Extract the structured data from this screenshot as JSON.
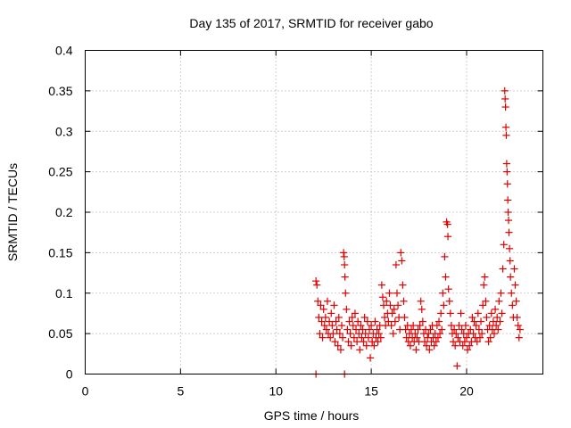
{
  "chart_data": {
    "type": "scatter",
    "title": "Day 135 of 2017, SRMTID for receiver gabo",
    "xlabel": "GPS time / hours",
    "ylabel": "SRMTID / TECUs",
    "xlim": [
      0,
      24
    ],
    "ylim": [
      0,
      0.4
    ],
    "x_ticks": [
      0,
      5,
      10,
      15,
      20
    ],
    "x_tick_labels": [
      "0",
      "5",
      "10",
      "15",
      "20"
    ],
    "y_ticks": [
      0,
      0.05,
      0.1,
      0.15,
      0.2,
      0.25,
      0.3,
      0.35,
      0.4
    ],
    "y_tick_labels": [
      "0",
      "0.05",
      "0.1",
      "0.15",
      "0.2",
      "0.25",
      "0.3",
      "0.35",
      "0.4"
    ],
    "grid": true,
    "marker": "+",
    "color": "#e00000",
    "series": [
      {
        "name": "SRMTID",
        "points": [
          [
            12.1,
            0.115
          ],
          [
            12.15,
            0.11
          ],
          [
            12.2,
            0.09
          ],
          [
            12.25,
            0.07
          ],
          [
            12.3,
            0.05
          ],
          [
            12.35,
            0.085
          ],
          [
            12.4,
            0.065
          ],
          [
            12.45,
            0.045
          ],
          [
            12.5,
            0.08
          ],
          [
            12.55,
            0.06
          ],
          [
            12.6,
            0.07
          ],
          [
            12.65,
            0.055
          ],
          [
            12.7,
            0.09
          ],
          [
            12.75,
            0.05
          ],
          [
            12.8,
            0.065
          ],
          [
            12.85,
            0.045
          ],
          [
            12.9,
            0.075
          ],
          [
            12.95,
            0.06
          ],
          [
            13.0,
            0.05
          ],
          [
            13.05,
            0.085
          ],
          [
            13.1,
            0.04
          ],
          [
            13.15,
            0.065
          ],
          [
            13.2,
            0.055
          ],
          [
            13.25,
            0.035
          ],
          [
            13.3,
            0.07
          ],
          [
            13.35,
            0.05
          ],
          [
            13.4,
            0.03
          ],
          [
            13.45,
            0.06
          ],
          [
            13.5,
            0.045
          ],
          [
            13.55,
            0.15
          ],
          [
            13.58,
            0.145
          ],
          [
            13.6,
            0.135
          ],
          [
            13.62,
            0.12
          ],
          [
            13.65,
            0.1
          ],
          [
            13.7,
            0.08
          ],
          [
            13.75,
            0.055
          ],
          [
            13.8,
            0.04
          ],
          [
            13.85,
            0.065
          ],
          [
            13.9,
            0.05
          ],
          [
            13.95,
            0.035
          ],
          [
            14.0,
            0.07
          ],
          [
            14.05,
            0.06
          ],
          [
            14.1,
            0.045
          ],
          [
            14.15,
            0.075
          ],
          [
            14.2,
            0.055
          ],
          [
            14.25,
            0.04
          ],
          [
            14.3,
            0.065
          ],
          [
            14.35,
            0.05
          ],
          [
            14.4,
            0.03
          ],
          [
            14.45,
            0.06
          ],
          [
            14.5,
            0.045
          ],
          [
            14.55,
            0.055
          ],
          [
            14.6,
            0.04
          ],
          [
            14.65,
            0.07
          ],
          [
            14.7,
            0.05
          ],
          [
            14.75,
            0.035
          ],
          [
            14.8,
            0.065
          ],
          [
            14.85,
            0.045
          ],
          [
            14.9,
            0.055
          ],
          [
            14.95,
            0.02
          ],
          [
            15.0,
            0.06
          ],
          [
            15.05,
            0.04
          ],
          [
            15.1,
            0.05
          ],
          [
            15.15,
            0.035
          ],
          [
            15.2,
            0.065
          ],
          [
            15.25,
            0.045
          ],
          [
            15.3,
            0.055
          ],
          [
            15.35,
            0.04
          ],
          [
            15.4,
            0.05
          ],
          [
            15.45,
            0.06
          ],
          [
            15.5,
            0.045
          ],
          [
            15.55,
            0.11
          ],
          [
            15.6,
            0.095
          ],
          [
            15.65,
            0.085
          ],
          [
            15.7,
            0.07
          ],
          [
            15.75,
            0.06
          ],
          [
            15.8,
            0.09
          ],
          [
            15.85,
            0.075
          ],
          [
            15.9,
            0.065
          ],
          [
            15.95,
            0.1
          ],
          [
            16.0,
            0.085
          ],
          [
            16.05,
            0.06
          ],
          [
            16.1,
            0.075
          ],
          [
            16.15,
            0.05
          ],
          [
            16.2,
            0.08
          ],
          [
            16.25,
            0.065
          ],
          [
            16.3,
            0.135
          ],
          [
            16.35,
            0.1
          ],
          [
            16.4,
            0.085
          ],
          [
            16.45,
            0.07
          ],
          [
            16.5,
            0.055
          ],
          [
            16.55,
            0.15
          ],
          [
            16.6,
            0.14
          ],
          [
            16.65,
            0.11
          ],
          [
            16.7,
            0.09
          ],
          [
            16.75,
            0.07
          ],
          [
            16.8,
            0.055
          ],
          [
            16.85,
            0.045
          ],
          [
            16.9,
            0.06
          ],
          [
            16.95,
            0.04
          ],
          [
            17.0,
            0.05
          ],
          [
            17.05,
            0.035
          ],
          [
            17.1,
            0.055
          ],
          [
            17.15,
            0.045
          ],
          [
            17.2,
            0.06
          ],
          [
            17.25,
            0.04
          ],
          [
            17.3,
            0.05
          ],
          [
            17.35,
            0.03
          ],
          [
            17.4,
            0.045
          ],
          [
            17.45,
            0.055
          ],
          [
            17.5,
            0.04
          ],
          [
            17.55,
            0.06
          ],
          [
            17.6,
            0.09
          ],
          [
            17.65,
            0.08
          ],
          [
            17.7,
            0.065
          ],
          [
            17.75,
            0.05
          ],
          [
            17.8,
            0.04
          ],
          [
            17.85,
            0.055
          ],
          [
            17.9,
            0.035
          ],
          [
            17.95,
            0.045
          ],
          [
            18.0,
            0.05
          ],
          [
            18.05,
            0.03
          ],
          [
            18.1,
            0.055
          ],
          [
            18.15,
            0.04
          ],
          [
            18.2,
            0.06
          ],
          [
            18.25,
            0.045
          ],
          [
            18.3,
            0.035
          ],
          [
            18.35,
            0.05
          ],
          [
            18.4,
            0.04
          ],
          [
            18.45,
            0.06
          ],
          [
            18.5,
            0.045
          ],
          [
            18.55,
            0.065
          ],
          [
            18.6,
            0.05
          ],
          [
            18.65,
            0.075
          ],
          [
            18.7,
            0.055
          ],
          [
            18.75,
            0.1
          ],
          [
            18.8,
            0.085
          ],
          [
            18.85,
            0.145
          ],
          [
            18.9,
            0.12
          ],
          [
            18.95,
            0.188
          ],
          [
            19.0,
            0.185
          ],
          [
            19.02,
            0.17
          ],
          [
            19.05,
            0.105
          ],
          [
            19.1,
            0.09
          ],
          [
            19.15,
            0.075
          ],
          [
            19.2,
            0.06
          ],
          [
            19.25,
            0.05
          ],
          [
            19.3,
            0.04
          ],
          [
            19.35,
            0.055
          ],
          [
            19.4,
            0.035
          ],
          [
            19.45,
            0.05
          ],
          [
            19.5,
            0.01
          ],
          [
            19.55,
            0.045
          ],
          [
            19.6,
            0.06
          ],
          [
            19.65,
            0.04
          ],
          [
            19.7,
            0.075
          ],
          [
            19.75,
            0.055
          ],
          [
            19.8,
            0.035
          ],
          [
            19.85,
            0.05
          ],
          [
            19.9,
            0.04
          ],
          [
            19.95,
            0.06
          ],
          [
            20.0,
            0.045
          ],
          [
            20.05,
            0.03
          ],
          [
            20.1,
            0.05
          ],
          [
            20.15,
            0.035
          ],
          [
            20.2,
            0.055
          ],
          [
            20.25,
            0.04
          ],
          [
            20.3,
            0.07
          ],
          [
            20.35,
            0.05
          ],
          [
            20.4,
            0.065
          ],
          [
            20.45,
            0.045
          ],
          [
            20.5,
            0.06
          ],
          [
            20.55,
            0.04
          ],
          [
            20.6,
            0.075
          ],
          [
            20.65,
            0.055
          ],
          [
            20.7,
            0.045
          ],
          [
            20.75,
            0.065
          ],
          [
            20.8,
            0.05
          ],
          [
            20.85,
            0.085
          ],
          [
            20.9,
            0.11
          ],
          [
            20.95,
            0.12
          ],
          [
            21.0,
            0.09
          ],
          [
            21.05,
            0.07
          ],
          [
            21.1,
            0.055
          ],
          [
            21.15,
            0.04
          ],
          [
            21.2,
            0.06
          ],
          [
            21.25,
            0.045
          ],
          [
            21.3,
            0.075
          ],
          [
            21.35,
            0.055
          ],
          [
            21.4,
            0.065
          ],
          [
            21.45,
            0.05
          ],
          [
            21.5,
            0.08
          ],
          [
            21.55,
            0.06
          ],
          [
            21.6,
            0.07
          ],
          [
            21.65,
            0.055
          ],
          [
            21.7,
            0.09
          ],
          [
            21.75,
            0.065
          ],
          [
            21.8,
            0.1
          ],
          [
            21.85,
            0.075
          ],
          [
            21.9,
            0.13
          ],
          [
            21.95,
            0.16
          ],
          [
            22.0,
            0.35
          ],
          [
            22.02,
            0.34
          ],
          [
            22.04,
            0.33
          ],
          [
            22.06,
            0.305
          ],
          [
            22.08,
            0.295
          ],
          [
            22.1,
            0.26
          ],
          [
            22.12,
            0.25
          ],
          [
            22.14,
            0.235
          ],
          [
            22.16,
            0.215
          ],
          [
            22.18,
            0.2
          ],
          [
            22.2,
            0.19
          ],
          [
            22.22,
            0.175
          ],
          [
            22.25,
            0.155
          ],
          [
            22.28,
            0.14
          ],
          [
            22.3,
            0.12
          ],
          [
            22.35,
            0.1
          ],
          [
            22.4,
            0.085
          ],
          [
            22.45,
            0.07
          ],
          [
            22.5,
            0.13
          ],
          [
            22.55,
            0.11
          ],
          [
            22.6,
            0.09
          ],
          [
            22.65,
            0.07
          ],
          [
            22.7,
            0.06
          ],
          [
            22.75,
            0.045
          ],
          [
            22.8,
            0.055
          ],
          [
            12.1,
            0.0
          ],
          [
            13.6,
            0.0
          ]
        ]
      }
    ]
  }
}
